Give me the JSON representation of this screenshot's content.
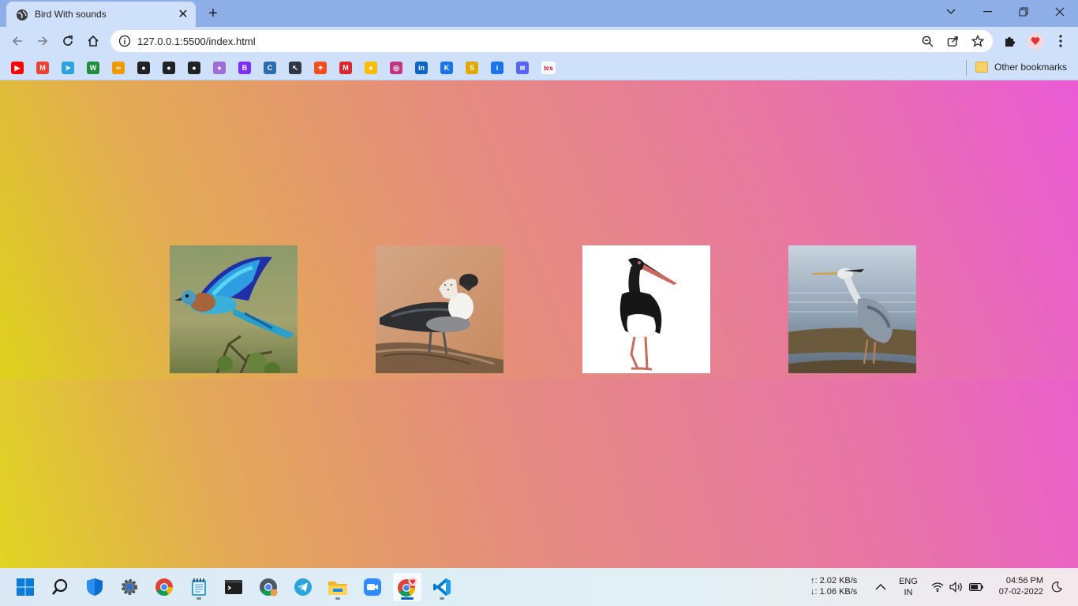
{
  "tab": {
    "title": "Bird With sounds",
    "favicon": "globe-icon",
    "close": "✕"
  },
  "newtab": "+",
  "window_controls": [
    "chevron-down-icon",
    "minimize-icon",
    "restore-icon",
    "close-icon"
  ],
  "toolbar": {
    "url": "127.0.0.1:5500/index.html",
    "nav": [
      "back-icon",
      "forward-icon",
      "reload-icon",
      "home-icon"
    ],
    "omnibox_icons": [
      "zoom-icon",
      "share-icon",
      "star-icon"
    ],
    "extensions": [
      "puzzle-icon",
      "extension-heart-icon",
      "menu-dots-icon"
    ]
  },
  "bookmarks": {
    "icons": [
      {
        "name": "youtube-icon",
        "color": "#ff0000",
        "glyph": "▶"
      },
      {
        "name": "gmail-icon",
        "color": "#ea4335",
        "glyph": "M"
      },
      {
        "name": "telegram-icon",
        "color": "#2aa3df",
        "glyph": "➤"
      },
      {
        "name": "w-icon",
        "color": "#1e8e3e",
        "glyph": "W"
      },
      {
        "name": "infinity-icon",
        "color": "#f29900",
        "glyph": "∞"
      },
      {
        "name": "globe-icon",
        "color": "#202124",
        "glyph": "●"
      },
      {
        "name": "github-icon",
        "color": "#202124",
        "glyph": "●"
      },
      {
        "name": "github-icon-2",
        "color": "#202124",
        "glyph": "●"
      },
      {
        "name": "avatar-icon",
        "color": "#a06cd5",
        "glyph": "●"
      },
      {
        "name": "bootstrap-icon",
        "color": "#7b2ff7",
        "glyph": "B"
      },
      {
        "name": "c-icon",
        "color": "#2b6cb0",
        "glyph": "C"
      },
      {
        "name": "cursor-icon",
        "color": "#2d3748",
        "glyph": "↖"
      },
      {
        "name": "figma-icon",
        "color": "#f24e1e",
        "glyph": "✦"
      },
      {
        "name": "mega-icon",
        "color": "#d9272e",
        "glyph": "M"
      },
      {
        "name": "keep-icon",
        "color": "#fbbc04",
        "glyph": "●"
      },
      {
        "name": "instagram-icon",
        "color": "#c13584",
        "glyph": "◎"
      },
      {
        "name": "linkedin-icon",
        "color": "#0a66c2",
        "glyph": "in"
      },
      {
        "name": "k-icon",
        "color": "#1a73e8",
        "glyph": "K"
      },
      {
        "name": "shine-icon",
        "color": "#e0a800",
        "glyph": "S"
      },
      {
        "name": "info-i-icon",
        "color": "#1a73e8",
        "glyph": "i"
      },
      {
        "name": "swirl-icon",
        "color": "#5865f2",
        "glyph": "≋"
      },
      {
        "name": "tcs-icon",
        "color": "#ffffff",
        "glyph": "tcs"
      }
    ],
    "other_bookmarks": "Other bookmarks"
  },
  "birds": [
    {
      "name": "indian-roller-image"
    },
    {
      "name": "knob-billed-duck-image"
    },
    {
      "name": "black-stork-image"
    },
    {
      "name": "grey-heron-image"
    }
  ],
  "taskbar": {
    "apps": [
      "windows-start-icon",
      "search-icon",
      "defender-icon",
      "settings-icon",
      "chrome-icon",
      "notepad-icon",
      "terminal-icon",
      "chrome-canary-icon",
      "telegram-icon",
      "file-explorer-icon",
      "zoom-icon",
      "chrome-active-icon",
      "vscode-icon"
    ],
    "net_up": "↑: 2.02 KB/s",
    "net_down": "↓: 1.06 KB/s",
    "lang_top": "ENG",
    "lang_bottom": "IN",
    "time": "04:56 PM",
    "date": "07-02-2022"
  }
}
